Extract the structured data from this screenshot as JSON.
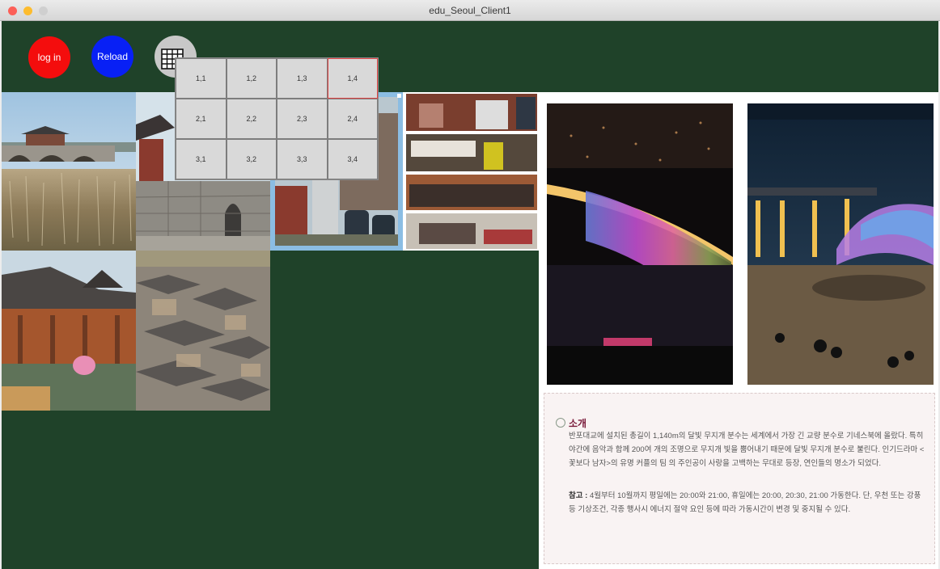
{
  "window": {
    "title": "edu_Seoul_Client1"
  },
  "toolbar": {
    "login_label": "log in",
    "reload_label": "Reload",
    "grid_icon": "grid-icon"
  },
  "grid_popup": {
    "cells": [
      "1,1",
      "1,2",
      "1,3",
      "1,4",
      "2,1",
      "2,2",
      "2,3",
      "2,4",
      "3,1",
      "3,2",
      "3,3",
      "3,4"
    ],
    "selected": "1,4"
  },
  "colors": {
    "background": "#1f4229",
    "login": "#f40d0d",
    "reload": "#0820f5",
    "selected_border": "#e04545"
  },
  "info": {
    "heading": "소개",
    "paragraph1": "반포대교에 설치된 총길이 1,140m의 달빛 무지개 분수는 세계에서 가장 긴 교량 분수로 기네스북에 올랐다. 특히 야간에 음악과 함께 200여 개의 조명으로 무지개 빛을 뿜어내기 때문에 달빛 무지개 분수로 불린다. 인기드라마 <꽃보다 남자>의 유명 커플의 팀 의 주인공이 사랑을 고백하는 무대로 등장, 연인들의 명소가 되었다.",
    "notice_label": "참고 :",
    "paragraph2": "4월부터 10월까지 평일에는 20:00와 21:00, 휴일에는 20:00, 20:30, 21:00 가동한다. 단, 우천 또는 강풍 등 기상조건, 각종 행사시 에너지 절약 요인 등에 따라 가동시간이 변경 및 중지될 수 있다."
  }
}
